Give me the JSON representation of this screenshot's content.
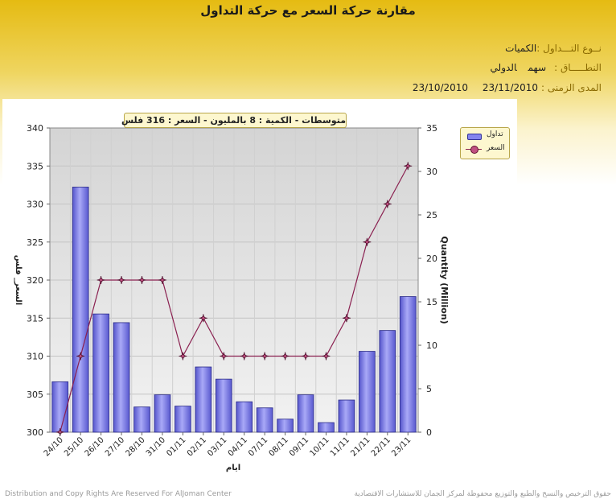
{
  "page": {
    "title": "مقارنة حركة السعر مع حركة التداول",
    "trade_type_label": "نــوع التـــداول :",
    "trade_type_value": "الكميات",
    "scope_label": "النطـــــاق :",
    "scope_value": "سهم",
    "scope_value2": "الدولي",
    "period_label": "المدى الزمنى :",
    "period_from": "23/10/2010",
    "period_to": "23/11/2010",
    "avg_text": "متوسطات - الكمية : 8 بالمليون   - السعر : 316 فلس",
    "legend_bar": "تداول",
    "legend_line": "السعر",
    "footer_left": "Distribution and Copy Rights Are Reserved For AlJoman Center",
    "footer_right": "حقوق الترخيص والنسخ والطبع والتوزيع محفوظة لمركز الجمان للاستشارات الاقتصادية"
  },
  "chart_data": {
    "type": "bar",
    "categories": [
      "24/10",
      "25/10",
      "26/10",
      "27/10",
      "28/10",
      "31/10",
      "01/11",
      "02/11",
      "03/11",
      "04/11",
      "07/11",
      "08/11",
      "09/11",
      "10/11",
      "11/11",
      "21/11",
      "22/11",
      "23/11"
    ],
    "series": [
      {
        "name": "تداول",
        "type": "bar",
        "axis": "right",
        "values": [
          5.8,
          28.2,
          13.6,
          12.6,
          2.9,
          4.3,
          3.0,
          7.5,
          6.1,
          3.5,
          2.8,
          1.5,
          4.3,
          1.1,
          3.7,
          9.3,
          11.7,
          15.6
        ]
      },
      {
        "name": "السعر",
        "type": "line",
        "axis": "left",
        "values": [
          300,
          310,
          320,
          320,
          320,
          320,
          310,
          315,
          310,
          310,
          310,
          310,
          310,
          310,
          315,
          325,
          330,
          335
        ]
      }
    ],
    "xlabel": "ايام",
    "ylabel_left": "السعر_ فلس",
    "ylabel_right": "Quantity (Million)",
    "ylim_left": [
      300,
      340
    ],
    "yticks_left": [
      300,
      305,
      310,
      315,
      320,
      325,
      330,
      335,
      340
    ],
    "ylim_right": [
      0,
      35
    ],
    "yticks_right": [
      0,
      5,
      10,
      15,
      20,
      25,
      30,
      35
    ],
    "grid": true,
    "legend": "top-right"
  }
}
